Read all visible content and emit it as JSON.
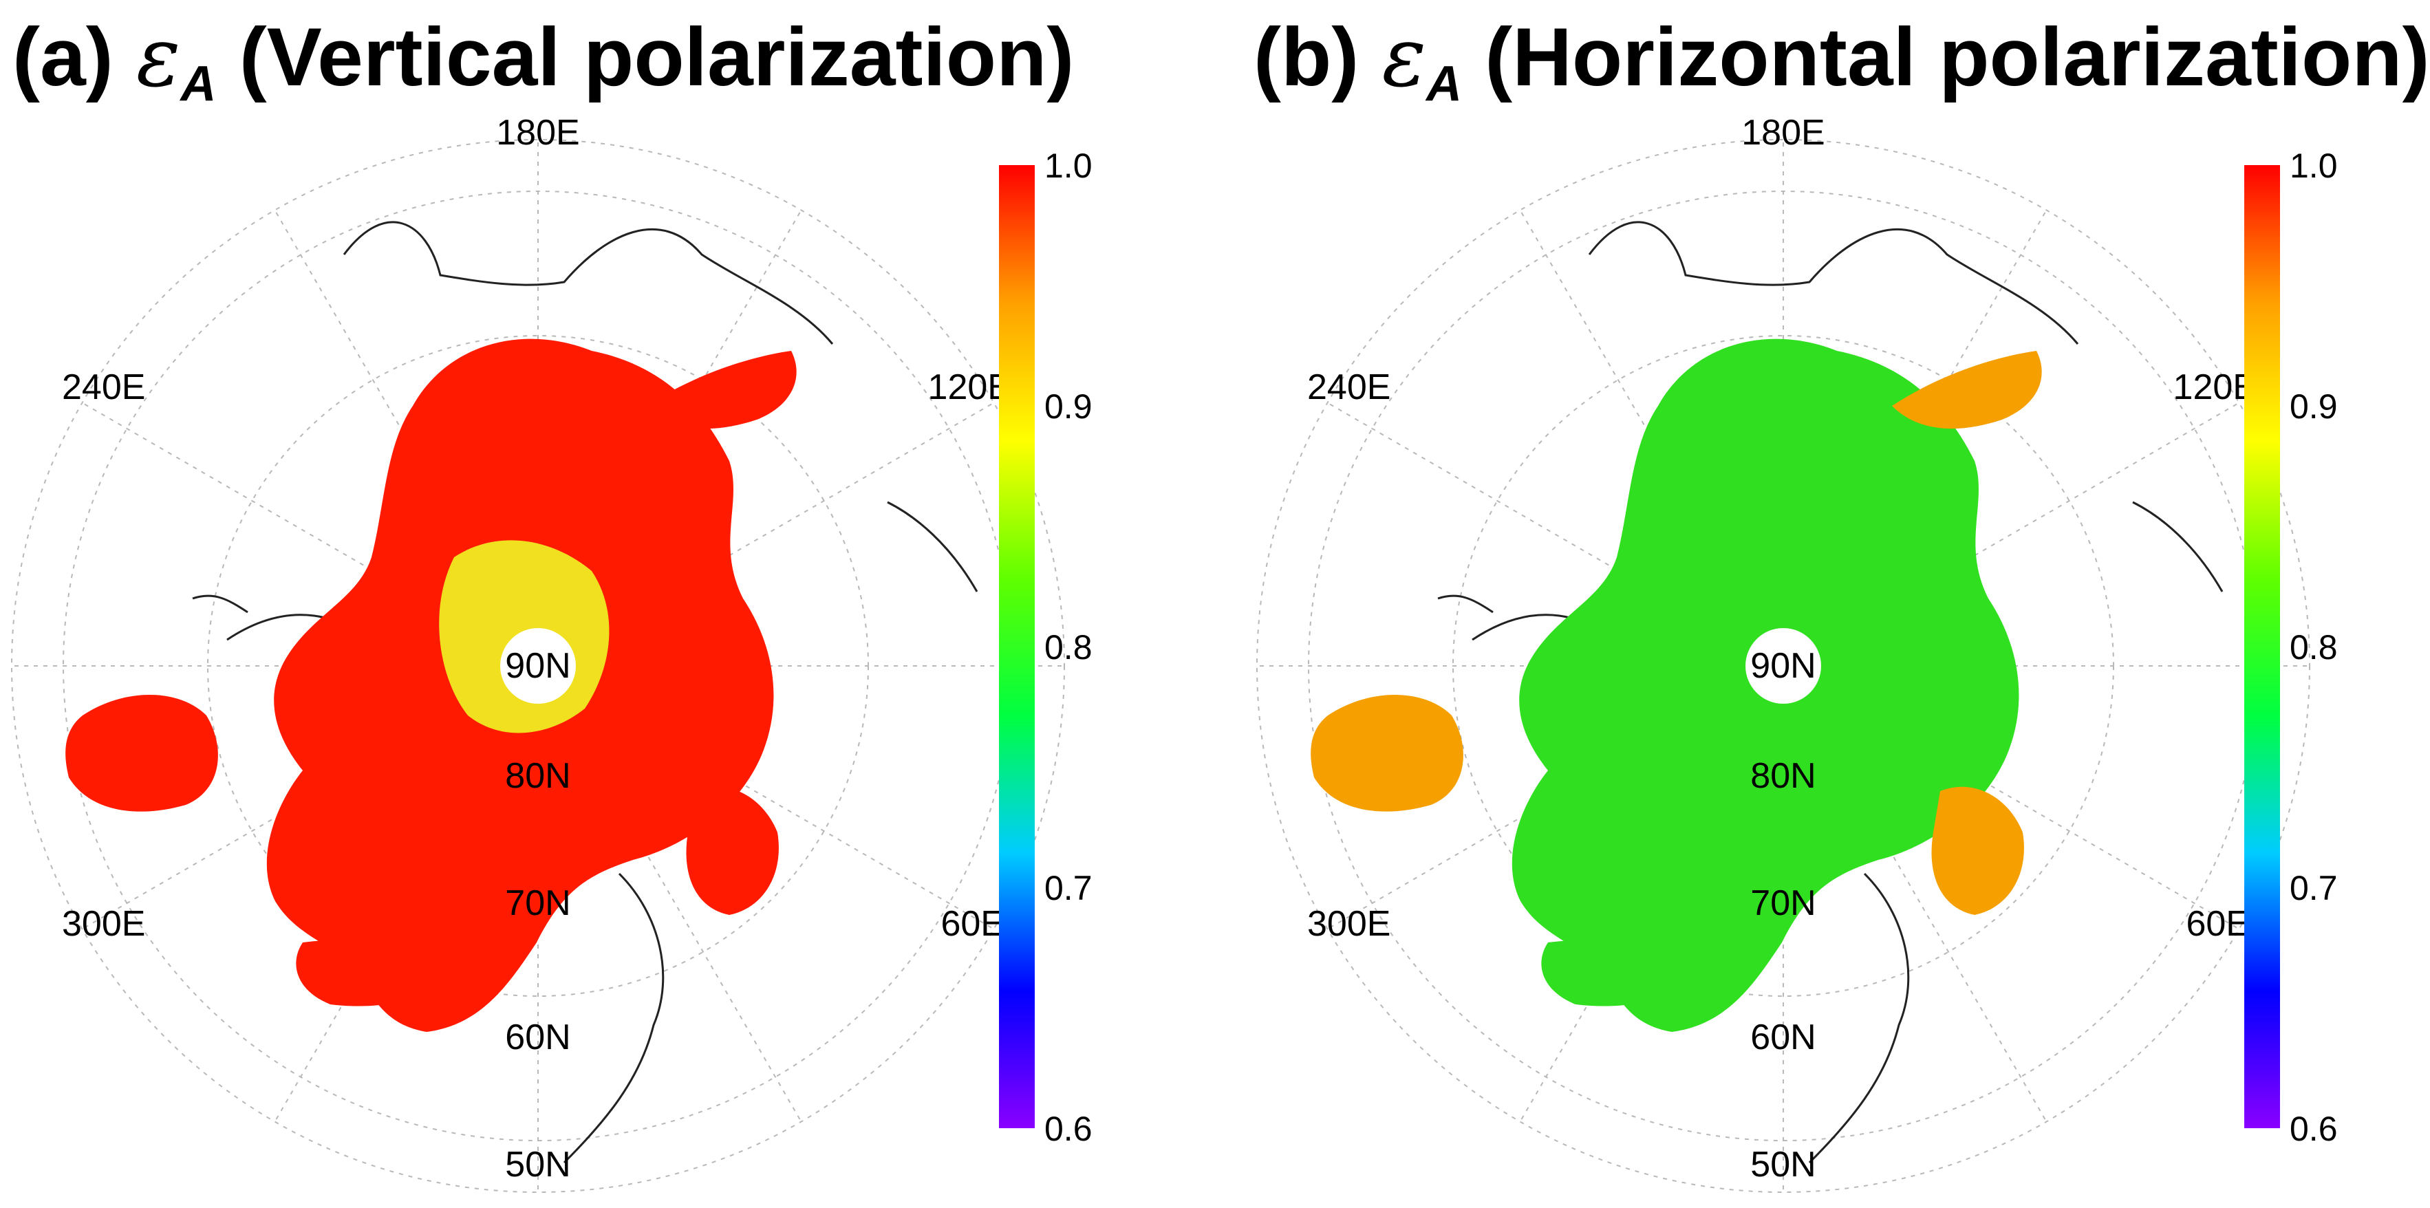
{
  "figure": {
    "panels": [
      {
        "id": "a",
        "prefix": "(a) ",
        "symbol": "ε",
        "subscript": "A",
        "suffix": " (Vertical polarization)",
        "dominant_color": "#ff1a00",
        "interior_color": "#f0e020"
      },
      {
        "id": "b",
        "prefix": "(b) ",
        "symbol": "ε",
        "subscript": "A",
        "suffix": " (Horizontal polarization)",
        "dominant_color": "#30e020",
        "interior_color": "#f5a000"
      }
    ],
    "longitude_labels": [
      "180E",
      "120E",
      "60E",
      "240E",
      "300E"
    ],
    "latitude_labels": [
      "90N",
      "80N",
      "70N",
      "60N",
      "50N"
    ],
    "colorbar": {
      "ticks": [
        "1.0",
        "0.9",
        "0.8",
        "0.7",
        "0.6"
      ],
      "range": [
        0.6,
        1.0
      ],
      "colors": [
        "#8a00ff",
        "#0000ff",
        "#00ccff",
        "#00ff40",
        "#60ff00",
        "#ffff00",
        "#ffa000",
        "#ff0000"
      ]
    }
  }
}
